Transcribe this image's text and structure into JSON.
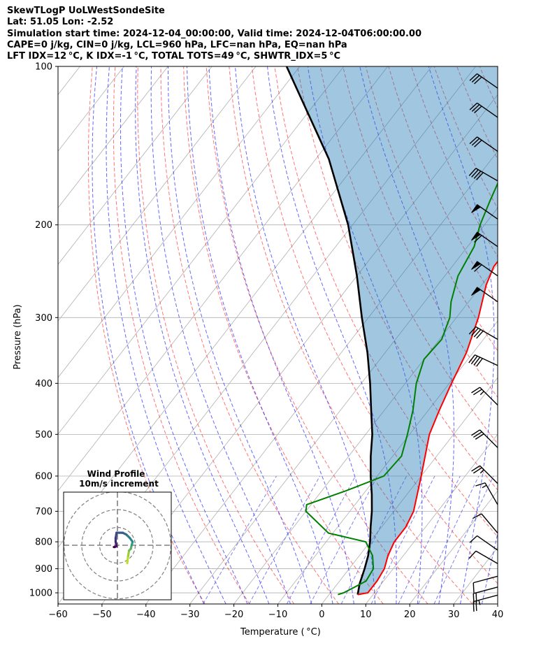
{
  "header": {
    "line1": "SkewTLogP UoLWestSondeSite",
    "line2": "Lat: 51.05   Lon: -2.52",
    "line3": "Simulation start time: 2024-12-04_00:00:00, Valid time: 2024-12-04T06:00:00.00",
    "line4": "CAPE=0 j/kg, CIN=0 j/kg, LCL=960 hPa, LFC=nan hPa, EQ=nan hPa",
    "line5": "LFT IDX=12 °C, K IDX=-1 °C, TOTAL TOTS=49 °C, SHWTR_IDX=5 °C"
  },
  "colors": {
    "temperature": "#ff0000",
    "dewpoint": "#008000",
    "parcel": "#000000",
    "cape_fill": "#1f77b4",
    "dry_adiabat": "#ff0000",
    "moist_adiabat": "#0000ff",
    "mixing_ratio": "#6b6bef",
    "hodograph_start": "#440154",
    "hodograph_end": "#bddf26"
  },
  "chart_data": {
    "type": "skewt",
    "xlabel": "Temperature ( °C)",
    "ylabel": "Pressure (hPa)",
    "xlim": [
      -60,
      40
    ],
    "ylim": [
      1050,
      100
    ],
    "y_scale": "log",
    "x_ticks": [
      "−60",
      "−50",
      "−40",
      "−30",
      "−20",
      "−10",
      "0",
      "10",
      "20",
      "30",
      "40"
    ],
    "y_ticks": [
      "100",
      "200",
      "300",
      "400",
      "500",
      "600",
      "700",
      "800",
      "900",
      "1000"
    ],
    "y_tick_values": [
      100,
      200,
      300,
      400,
      500,
      600,
      700,
      800,
      900,
      1000
    ],
    "grid": true,
    "temperature_profile": [
      [
        1008,
        6.5
      ],
      [
        1000,
        8.5
      ],
      [
        950,
        8.5
      ],
      [
        900,
        8
      ],
      [
        850,
        6.5
      ],
      [
        800,
        5.5
      ],
      [
        750,
        5.5
      ],
      [
        700,
        4.5
      ],
      [
        600,
        0
      ],
      [
        500,
        -5.5
      ],
      [
        450,
        -7.5
      ],
      [
        400,
        -9.5
      ],
      [
        350,
        -11.5
      ],
      [
        300,
        -15
      ],
      [
        260,
        -19
      ],
      [
        240,
        -20.5
      ],
      [
        220,
        -20.5
      ],
      [
        200,
        -19
      ],
      [
        180,
        -17.5
      ],
      [
        160,
        -17
      ],
      [
        140,
        -17
      ],
      [
        120,
        -17
      ],
      [
        100,
        -17.5
      ]
    ],
    "dewpoint_profile": [
      [
        1008,
        2
      ],
      [
        1000,
        3
      ],
      [
        950,
        6
      ],
      [
        900,
        5.5
      ],
      [
        850,
        3
      ],
      [
        800,
        -1
      ],
      [
        770,
        -11
      ],
      [
        700,
        -20
      ],
      [
        680,
        -21
      ],
      [
        640,
        -14.5
      ],
      [
        600,
        -8.5
      ],
      [
        550,
        -8
      ],
      [
        500,
        -10.5
      ],
      [
        450,
        -13.5
      ],
      [
        400,
        -17.5
      ],
      [
        360,
        -20
      ],
      [
        330,
        -19.5
      ],
      [
        300,
        -21.5
      ],
      [
        280,
        -24
      ],
      [
        250,
        -27
      ],
      [
        220,
        -28.5
      ],
      [
        200,
        -31
      ],
      [
        180,
        -33
      ],
      [
        160,
        -35
      ],
      [
        150,
        -37
      ],
      [
        130,
        -39
      ],
      [
        100,
        -41
      ]
    ],
    "parcel_profile": [
      [
        1008,
        6.5
      ],
      [
        960,
        5
      ],
      [
        900,
        3.5
      ],
      [
        850,
        2
      ],
      [
        800,
        0
      ],
      [
        750,
        -2.5
      ],
      [
        700,
        -5
      ],
      [
        650,
        -8
      ],
      [
        600,
        -11.5
      ],
      [
        550,
        -15
      ],
      [
        500,
        -18.5
      ],
      [
        450,
        -23
      ],
      [
        400,
        -28
      ],
      [
        350,
        -34
      ],
      [
        300,
        -41.5
      ],
      [
        250,
        -50
      ],
      [
        200,
        -61
      ],
      [
        150,
        -77
      ],
      [
        100,
        -103
      ]
    ],
    "wind_barbs": [
      {
        "p": 1010,
        "speed_kt": 25,
        "dir_deg": 255
      },
      {
        "p": 975,
        "speed_kt": 20,
        "dir_deg": 255
      },
      {
        "p": 930,
        "speed_kt": 10,
        "dir_deg": 255
      },
      {
        "p": 880,
        "speed_kt": 10,
        "dir_deg": 300
      },
      {
        "p": 830,
        "speed_kt": 10,
        "dir_deg": 305
      },
      {
        "p": 770,
        "speed_kt": 10,
        "dir_deg": 320
      },
      {
        "p": 680,
        "speed_kt": 15,
        "dir_deg": 330
      },
      {
        "p": 620,
        "speed_kt": 25,
        "dir_deg": 315
      },
      {
        "p": 530,
        "speed_kt": 30,
        "dir_deg": 315
      },
      {
        "p": 440,
        "speed_kt": 25,
        "dir_deg": 315
      },
      {
        "p": 370,
        "speed_kt": 40,
        "dir_deg": 295
      },
      {
        "p": 330,
        "speed_kt": 40,
        "dir_deg": 300
      },
      {
        "p": 280,
        "speed_kt": 50,
        "dir_deg": 305
      },
      {
        "p": 250,
        "speed_kt": 60,
        "dir_deg": 305
      },
      {
        "p": 220,
        "speed_kt": 60,
        "dir_deg": 305
      },
      {
        "p": 195,
        "speed_kt": 50,
        "dir_deg": 305
      },
      {
        "p": 165,
        "speed_kt": 40,
        "dir_deg": 300
      },
      {
        "p": 145,
        "speed_kt": 30,
        "dir_deg": 305
      },
      {
        "p": 125,
        "speed_kt": 30,
        "dir_deg": 305
      },
      {
        "p": 110,
        "speed_kt": 30,
        "dir_deg": 305
      }
    ],
    "hodograph": {
      "title": "Wind Profile",
      "subtitle": "10m/s increment",
      "ring_increment_ms": 10,
      "rings": 3,
      "points": [
        [
          5.5,
          -10
        ],
        [
          6,
          -6
        ],
        [
          6.5,
          -3
        ],
        [
          7.5,
          -2
        ],
        [
          8,
          0
        ],
        [
          8.5,
          2
        ],
        [
          7,
          4
        ],
        [
          5,
          6
        ],
        [
          3,
          7
        ],
        [
          -0.5,
          7
        ],
        [
          -1,
          4
        ],
        [
          -1,
          2
        ],
        [
          -0.5,
          -0.5
        ],
        [
          -1.5,
          -1
        ],
        [
          -2,
          -1
        ]
      ]
    }
  }
}
